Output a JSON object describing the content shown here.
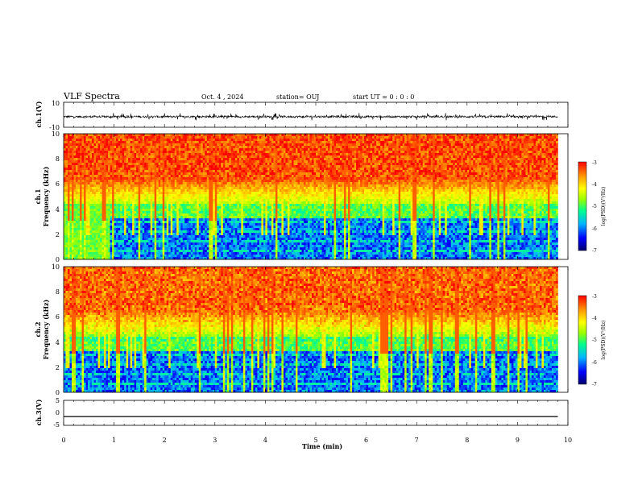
{
  "header": {
    "title": "VLF Spectra",
    "date": "Oct. 4 , 2024",
    "station": "station= OUJ",
    "start": "start  UT =   0 : 0  : 0"
  },
  "colors": {
    "signal": "#000000",
    "colormap": [
      "#00006e",
      "#0000ff",
      "#00b4ff",
      "#00ff8c",
      "#9bff00",
      "#ffff00",
      "#ff9600",
      "#ff0000"
    ]
  },
  "chart_data": [
    {
      "type": "line",
      "panel": "ch1-waveform",
      "ylabel": "ch.1(V)",
      "ylim": [
        -10,
        10
      ],
      "yticks": [
        "10",
        "-10"
      ],
      "xlim": [
        0,
        10
      ],
      "baseline": -1.5,
      "amplitude_range": [
        -4.5,
        1.5
      ],
      "data_end_min": 9.8
    },
    {
      "type": "heatmap",
      "panel": "ch1-spectrogram",
      "ylabel": "ch.1\nFrequency  (kHz)",
      "ylim": [
        0,
        10
      ],
      "yticks": [
        "0",
        "2",
        "4",
        "6",
        "8",
        "10"
      ],
      "xlim": [
        0,
        10
      ],
      "data_end_min": 9.8,
      "colorbar": {
        "label": "log(PSD)(V²/Hz)",
        "range": [
          -7,
          -3
        ],
        "ticks": [
          "-3",
          "-4",
          "-5",
          "-6",
          "-7"
        ]
      }
    },
    {
      "type": "heatmap",
      "panel": "ch2-spectrogram",
      "ylabel": "ch.2\nFrequency  (kHz)",
      "ylim": [
        0,
        10
      ],
      "yticks": [
        "0",
        "2",
        "4",
        "6",
        "8",
        "10"
      ],
      "xlim": [
        0,
        10
      ],
      "data_end_min": 9.8,
      "colorbar": {
        "label": "log(PSD)(V²/Hz)",
        "range": [
          -7,
          -3
        ],
        "ticks": [
          "-3",
          "-4",
          "-5",
          "-6",
          "-7"
        ]
      }
    },
    {
      "type": "line",
      "panel": "ch3-waveform",
      "ylabel": "ch.3(V)",
      "ylim": [
        -5,
        5
      ],
      "yticks": [
        "5",
        "0",
        "-5"
      ],
      "xlim": [
        0,
        10
      ],
      "baseline": -1.5,
      "data_end_min": 9.8
    }
  ],
  "xaxis": {
    "label": "Time  (min)",
    "ticks": [
      "0",
      "1",
      "2",
      "3",
      "4",
      "5",
      "6",
      "7",
      "8",
      "9",
      "10"
    ]
  }
}
